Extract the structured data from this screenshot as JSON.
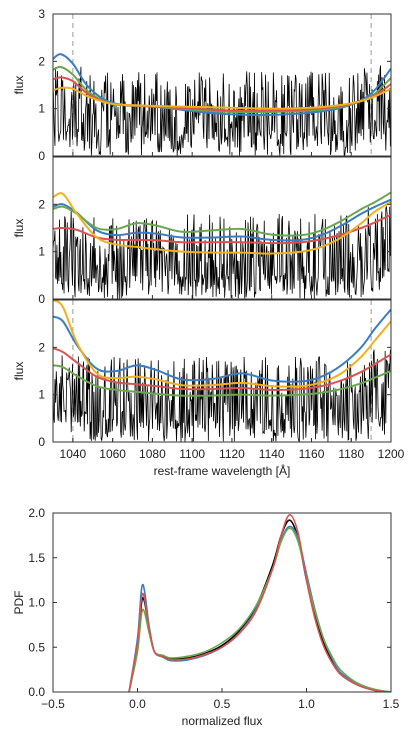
{
  "chart_data": [
    {
      "type": "line",
      "panel": "top",
      "ylabel": "flux",
      "xlim": [
        1030,
        1200
      ],
      "ylim": [
        0,
        3
      ],
      "yticks": [
        "0",
        "1",
        "2",
        "3"
      ],
      "xticks": [],
      "vlines": [
        1040,
        1190
      ],
      "spectrum": {
        "color": "#000000",
        "baseline": 1.0,
        "noise": "black absorption spectrum fluctuating between 0 and ~1.9"
      },
      "series": [
        {
          "color": "#3b7dc3",
          "x": [
            1030,
            1034,
            1040,
            1048,
            1060,
            1080,
            1100,
            1120,
            1140,
            1160,
            1175,
            1185,
            1192,
            1200
          ],
          "y": [
            2.05,
            2.15,
            1.95,
            1.45,
            1.12,
            1.05,
            0.95,
            0.88,
            0.87,
            0.92,
            1.02,
            1.18,
            1.4,
            1.85
          ]
        },
        {
          "color": "#6aa84f",
          "x": [
            1030,
            1034,
            1040,
            1048,
            1060,
            1080,
            1100,
            1120,
            1140,
            1160,
            1175,
            1185,
            1192,
            1200
          ],
          "y": [
            1.82,
            1.88,
            1.72,
            1.35,
            1.1,
            1.04,
            0.98,
            0.93,
            0.93,
            0.96,
            1.04,
            1.16,
            1.32,
            1.65
          ]
        },
        {
          "color": "#d9534f",
          "x": [
            1030,
            1034,
            1040,
            1048,
            1060,
            1080,
            1100,
            1120,
            1140,
            1160,
            1175,
            1185,
            1192,
            1200
          ],
          "y": [
            1.62,
            1.66,
            1.58,
            1.3,
            1.1,
            1.05,
            1.0,
            0.96,
            0.96,
            0.99,
            1.06,
            1.16,
            1.28,
            1.52
          ]
        },
        {
          "color": "#f2b01e",
          "x": [
            1030,
            1034,
            1040,
            1048,
            1060,
            1080,
            1100,
            1120,
            1140,
            1160,
            1175,
            1185,
            1192,
            1200
          ],
          "y": [
            1.38,
            1.44,
            1.42,
            1.25,
            1.1,
            1.06,
            1.04,
            1.02,
            1.0,
            1.02,
            1.08,
            1.16,
            1.26,
            1.42
          ]
        }
      ]
    },
    {
      "type": "line",
      "panel": "middle",
      "ylabel": "flux",
      "xlim": [
        1030,
        1200
      ],
      "ylim": [
        0,
        3
      ],
      "yticks": [
        "0",
        "1",
        "2"
      ],
      "xticks": [],
      "spectrum": {
        "color": "#000000",
        "baseline": 1.0,
        "noise": "black absorption spectrum fluctuating between 0 and ~1.9"
      },
      "series": [
        {
          "color": "#3b7dc3",
          "x": [
            1030,
            1035,
            1042,
            1052,
            1062,
            1072,
            1082,
            1095,
            1110,
            1125,
            1140,
            1155,
            1165,
            1175,
            1185,
            1192,
            1200
          ],
          "y": [
            1.95,
            2.0,
            1.82,
            1.45,
            1.35,
            1.4,
            1.38,
            1.3,
            1.3,
            1.32,
            1.25,
            1.25,
            1.35,
            1.55,
            1.8,
            1.95,
            2.1
          ]
        },
        {
          "color": "#6aa84f",
          "x": [
            1030,
            1035,
            1042,
            1052,
            1062,
            1072,
            1082,
            1095,
            1110,
            1125,
            1140,
            1155,
            1165,
            1175,
            1185,
            1192,
            1200
          ],
          "y": [
            1.9,
            1.95,
            1.8,
            1.5,
            1.48,
            1.6,
            1.55,
            1.42,
            1.45,
            1.48,
            1.36,
            1.35,
            1.45,
            1.65,
            1.9,
            2.05,
            2.25
          ]
        },
        {
          "color": "#d9534f",
          "x": [
            1030,
            1035,
            1042,
            1052,
            1062,
            1072,
            1082,
            1095,
            1110,
            1125,
            1140,
            1155,
            1165,
            1175,
            1185,
            1192,
            1200
          ],
          "y": [
            1.48,
            1.5,
            1.46,
            1.3,
            1.25,
            1.25,
            1.24,
            1.2,
            1.2,
            1.2,
            1.18,
            1.2,
            1.26,
            1.36,
            1.5,
            1.62,
            1.78
          ]
        },
        {
          "color": "#f2b01e",
          "x": [
            1030,
            1035,
            1042,
            1052,
            1062,
            1072,
            1082,
            1095,
            1110,
            1125,
            1140,
            1155,
            1165,
            1175,
            1185,
            1192,
            1200
          ],
          "y": [
            2.15,
            2.22,
            1.8,
            1.3,
            1.15,
            1.1,
            1.05,
            1.0,
            0.98,
            0.98,
            0.96,
            1.0,
            1.1,
            1.3,
            1.6,
            1.85,
            2.05
          ]
        }
      ]
    },
    {
      "type": "line",
      "panel": "bottom",
      "ylabel": "flux",
      "xlabel": "rest-frame wavelength [Å]",
      "xlim": [
        1030,
        1200
      ],
      "ylim": [
        0,
        3
      ],
      "yticks": [
        "0",
        "1",
        "2"
      ],
      "xticks": [
        "1040",
        "1060",
        "1080",
        "1100",
        "1120",
        "1140",
        "1160",
        "1180",
        "1200"
      ],
      "xtick_values": [
        1040,
        1060,
        1080,
        1100,
        1120,
        1140,
        1160,
        1180,
        1200
      ],
      "vlines": [
        1040,
        1190
      ],
      "spectrum": {
        "color": "#000000",
        "baseline": 1.0,
        "noise": "black absorption spectrum fluctuating between 0 and ~1.9"
      },
      "series": [
        {
          "color": "#3b7dc3",
          "x": [
            1030,
            1035,
            1042,
            1052,
            1062,
            1072,
            1082,
            1095,
            1110,
            1125,
            1140,
            1155,
            1165,
            1175,
            1185,
            1192,
            1200
          ],
          "y": [
            2.65,
            2.55,
            2.05,
            1.55,
            1.5,
            1.62,
            1.52,
            1.32,
            1.33,
            1.45,
            1.3,
            1.28,
            1.38,
            1.62,
            2.0,
            2.4,
            2.8
          ]
        },
        {
          "color": "#f2b01e",
          "x": [
            1030,
            1035,
            1042,
            1052,
            1062,
            1072,
            1082,
            1095,
            1110,
            1125,
            1140,
            1155,
            1165,
            1175,
            1185,
            1192,
            1200
          ],
          "y": [
            3.0,
            2.85,
            2.1,
            1.45,
            1.35,
            1.38,
            1.32,
            1.2,
            1.2,
            1.25,
            1.18,
            1.18,
            1.26,
            1.45,
            1.8,
            2.15,
            2.55
          ]
        },
        {
          "color": "#d9534f",
          "x": [
            1030,
            1035,
            1042,
            1052,
            1062,
            1072,
            1082,
            1095,
            1110,
            1125,
            1140,
            1155,
            1165,
            1175,
            1185,
            1192,
            1200
          ],
          "y": [
            1.98,
            1.9,
            1.68,
            1.38,
            1.26,
            1.22,
            1.18,
            1.12,
            1.12,
            1.14,
            1.1,
            1.12,
            1.18,
            1.3,
            1.48,
            1.65,
            1.85
          ]
        },
        {
          "color": "#6aa84f",
          "x": [
            1030,
            1035,
            1042,
            1052,
            1062,
            1072,
            1082,
            1095,
            1110,
            1125,
            1140,
            1155,
            1165,
            1175,
            1185,
            1192,
            1200
          ],
          "y": [
            1.62,
            1.58,
            1.4,
            1.18,
            1.1,
            1.06,
            1.02,
            0.98,
            0.98,
            1.0,
            0.98,
            1.0,
            1.04,
            1.12,
            1.24,
            1.36,
            1.5
          ]
        }
      ]
    },
    {
      "type": "line",
      "panel": "pdf",
      "ylabel": "PDF",
      "xlabel": "normalized flux",
      "xlim": [
        -0.5,
        1.5
      ],
      "ylim": [
        0,
        2.0
      ],
      "xticks": [
        "−0.5",
        "0.0",
        "0.5",
        "1.0",
        "1.5"
      ],
      "xtick_values": [
        -0.5,
        0.0,
        0.5,
        1.0,
        1.5
      ],
      "yticks": [
        "0.0",
        "0.5",
        "1.0",
        "1.5",
        "2.0"
      ],
      "ytick_values": [
        0.0,
        0.5,
        1.0,
        1.5,
        2.0
      ],
      "series": [
        {
          "color": "#000000",
          "x": [
            -0.05,
            0.0,
            0.03,
            0.07,
            0.1,
            0.15,
            0.2,
            0.3,
            0.4,
            0.5,
            0.6,
            0.7,
            0.8,
            0.85,
            0.9,
            0.95,
            1.0,
            1.05,
            1.1,
            1.15,
            1.2,
            1.3,
            1.4,
            1.5
          ],
          "y": [
            0.0,
            0.5,
            1.05,
            0.7,
            0.45,
            0.4,
            0.37,
            0.38,
            0.43,
            0.52,
            0.68,
            0.95,
            1.42,
            1.75,
            1.92,
            1.72,
            1.25,
            0.85,
            0.55,
            0.35,
            0.2,
            0.08,
            0.02,
            0.0
          ]
        },
        {
          "color": "#3b7dc3",
          "x": [
            -0.05,
            0.0,
            0.03,
            0.07,
            0.1,
            0.15,
            0.2,
            0.3,
            0.4,
            0.5,
            0.6,
            0.7,
            0.8,
            0.85,
            0.9,
            0.95,
            1.0,
            1.05,
            1.1,
            1.15,
            1.2,
            1.3,
            1.4,
            1.5
          ],
          "y": [
            0.0,
            0.6,
            1.2,
            0.72,
            0.45,
            0.39,
            0.35,
            0.36,
            0.41,
            0.5,
            0.65,
            0.92,
            1.38,
            1.7,
            1.85,
            1.72,
            1.32,
            0.92,
            0.6,
            0.38,
            0.22,
            0.1,
            0.03,
            0.0
          ]
        },
        {
          "color": "#6aa84f",
          "x": [
            -0.05,
            0.0,
            0.03,
            0.07,
            0.1,
            0.15,
            0.2,
            0.3,
            0.4,
            0.5,
            0.6,
            0.7,
            0.8,
            0.85,
            0.9,
            0.95,
            1.0,
            1.05,
            1.1,
            1.15,
            1.2,
            1.3,
            1.4,
            1.5
          ],
          "y": [
            0.0,
            0.45,
            0.92,
            0.65,
            0.45,
            0.41,
            0.38,
            0.4,
            0.45,
            0.55,
            0.7,
            0.96,
            1.38,
            1.68,
            1.83,
            1.68,
            1.28,
            0.9,
            0.6,
            0.4,
            0.25,
            0.1,
            0.03,
            0.0
          ]
        },
        {
          "color": "#d9534f",
          "x": [
            -0.05,
            0.0,
            0.03,
            0.07,
            0.1,
            0.15,
            0.2,
            0.3,
            0.4,
            0.5,
            0.6,
            0.7,
            0.8,
            0.85,
            0.9,
            0.95,
            1.0,
            1.05,
            1.1,
            1.15,
            1.2,
            1.3,
            1.4,
            1.5
          ],
          "y": [
            0.0,
            0.55,
            1.1,
            0.7,
            0.45,
            0.39,
            0.36,
            0.37,
            0.42,
            0.5,
            0.65,
            0.9,
            1.38,
            1.75,
            1.98,
            1.78,
            1.25,
            0.82,
            0.52,
            0.33,
            0.2,
            0.08,
            0.02,
            0.0
          ]
        }
      ]
    }
  ]
}
